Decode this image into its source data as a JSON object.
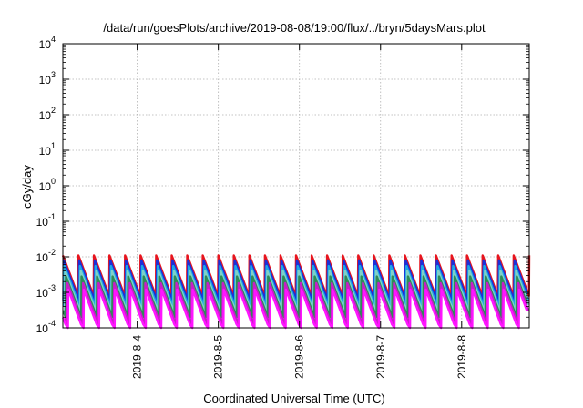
{
  "chart_data": {
    "type": "line",
    "title": "/data/run/goesPlots/archive/2019-08-08/19:00/flux/../bryn/5daysMars.plot",
    "xlabel": "Coordinated Universal Time (UTC)",
    "ylabel": "cGy/day",
    "x_range": [
      "2019-08-03 02:00",
      "2019-08-08 20:00"
    ],
    "x_ticks": [
      "2019-8-4",
      "2019-8-5",
      "2019-8-6",
      "2019-8-7",
      "2019-8-8"
    ],
    "y_scale": "log",
    "ylim": [
      0.0001,
      10000
    ],
    "y_ticks": [
      {
        "base": "10",
        "exp": "-4"
      },
      {
        "base": "10",
        "exp": "-3"
      },
      {
        "base": "10",
        "exp": "-2"
      },
      {
        "base": "10",
        "exp": "-1"
      },
      {
        "base": "10",
        "exp": "0"
      },
      {
        "base": "10",
        "exp": "1"
      },
      {
        "base": "10",
        "exp": "2"
      },
      {
        "base": "10",
        "exp": "3"
      },
      {
        "base": "10",
        "exp": "4"
      }
    ],
    "grid": true,
    "sawtooth_period_hours": 4.6,
    "series": [
      {
        "color": "#e8141c",
        "peak": 0.011,
        "trough": 0.0008,
        "phase": 0.0
      },
      {
        "color": "#1c2fd8",
        "peak": 0.008,
        "trough": 0.0006,
        "phase": 0.05
      },
      {
        "color": "#1aa8e6",
        "peak": 0.0055,
        "trough": 0.0004,
        "phase": 0.1
      },
      {
        "color": "#7fd0c8",
        "peak": 0.004,
        "trough": 0.00028,
        "phase": 0.15
      },
      {
        "color": "#2e8b57",
        "peak": 0.0028,
        "trough": 0.0002,
        "phase": 0.2
      },
      {
        "color": "#c81ec8",
        "peak": 0.0018,
        "trough": 0.00012,
        "phase": 0.3
      },
      {
        "color": "#ff14ff",
        "peak": 0.0012,
        "trough": 8e-05,
        "phase": 0.35
      }
    ]
  }
}
